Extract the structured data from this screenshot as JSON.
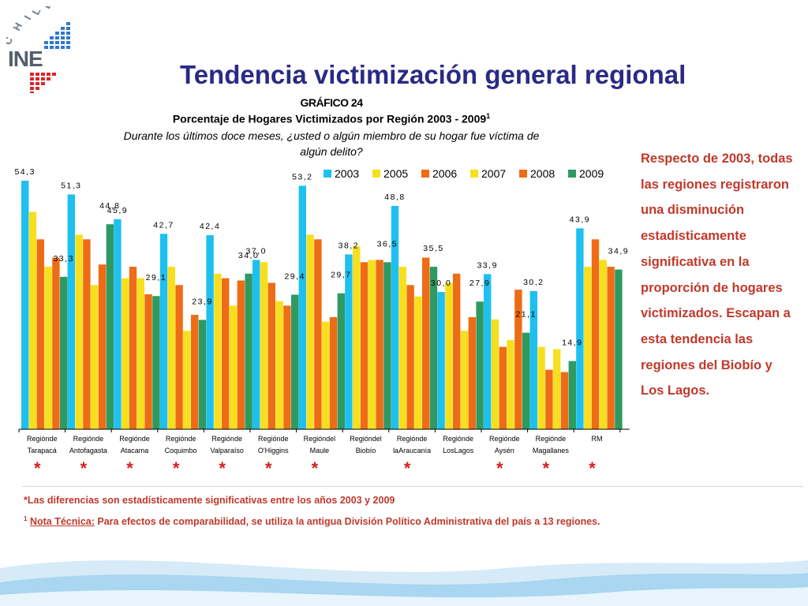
{
  "logo": {
    "country": "CHILE",
    "acronym": "INE"
  },
  "title": "Tendencia victimización general regional",
  "chart_heading": {
    "line1": "GRÁFICO 24",
    "line2": "Porcentaje de Hogares Victimizados por Región 2003 - 2009",
    "line2_sup": "1",
    "line3": "Durante los últimos doce meses, ¿usted o algún miembro de su hogar fue víctima de algún delito?"
  },
  "side_note": "Respecto de 2003, todas las regiones registraron una disminución estadísticamente significativa en la proporción de hogares victimizados. Escapan a esta tendencia las regiones del Biobío y Los Lagos.",
  "footnotes": {
    "significance": "*Las diferencias son estadísticamente significativas entre los años 2003 y 2009",
    "note_sup": "1",
    "note_label": "Nota Técnica:",
    "note_text": " Para efectos de comparabilidad, se utiliza la antigua División Político Administrativa del país a 13 regiones."
  },
  "chart_data": {
    "type": "bar",
    "categories": [
      [
        "Regiónde",
        "Tarapacá"
      ],
      [
        "Regiónde",
        "Antofagasta"
      ],
      [
        "Regiónde",
        "Atacama"
      ],
      [
        "Regiónde",
        "Coquimbo"
      ],
      [
        "Regiónde",
        "Valparaíso"
      ],
      [
        "Regiónde",
        "O'Higgins"
      ],
      [
        "Regióndel",
        "Maule"
      ],
      [
        "Regióndel",
        "Biobío"
      ],
      [
        "Regiónde",
        "laAraucanía"
      ],
      [
        "Regiónde",
        "LosLagos"
      ],
      [
        "Regiónde",
        "Aysén"
      ],
      [
        "Regiónde",
        "Magallanes"
      ],
      [
        "RM",
        ""
      ]
    ],
    "series": [
      {
        "name": "2003",
        "color": "#1ec0ef",
        "values": [
          54.3,
          51.3,
          45.9,
          42.7,
          42.4,
          37.0,
          53.2,
          38.2,
          48.8,
          30.0,
          33.9,
          30.2,
          43.9
        ]
      },
      {
        "name": "2005",
        "color": "#f7df1e",
        "values": [
          47.5,
          42.5,
          33.0,
          35.5,
          34.0,
          36.5,
          42.5,
          40.0,
          35.5,
          32.0,
          24.0,
          18.0,
          35.5
        ]
      },
      {
        "name": "2006",
        "color": "#ee6c15",
        "values": [
          41.5,
          41.5,
          35.5,
          31.5,
          33.0,
          32.0,
          41.5,
          36.5,
          31.5,
          34.0,
          18.0,
          13.0,
          41.5
        ]
      },
      {
        "name": "2007",
        "color": "#f7df1e",
        "values": [
          35.5,
          31.5,
          33.0,
          21.5,
          27.0,
          28.0,
          23.5,
          37.0,
          29.0,
          21.5,
          19.5,
          17.5,
          37.0
        ]
      },
      {
        "name": "2008",
        "color": "#ee6c15",
        "values": [
          37.5,
          36.0,
          29.5,
          25.0,
          32.5,
          27.0,
          24.5,
          37.0,
          37.5,
          24.5,
          30.5,
          12.5,
          35.5
        ]
      },
      {
        "name": "2009",
        "color": "#2e9a62",
        "values": [
          33.3,
          44.8,
          29.1,
          23.9,
          34.0,
          29.4,
          29.7,
          36.5,
          35.5,
          27.9,
          21.1,
          14.9,
          34.9
        ]
      }
    ],
    "data_labels": [
      {
        "category": 0,
        "text": "54,3"
      },
      {
        "category": 0,
        "text": "33,3"
      },
      {
        "category": 1,
        "text": "51,3"
      },
      {
        "category": 1,
        "text": "44,8"
      },
      {
        "category": 2,
        "text": "45,9"
      },
      {
        "category": 2,
        "text": "29,1"
      },
      {
        "category": 3,
        "text": "42,7"
      },
      {
        "category": 3,
        "text": "23,9"
      },
      {
        "category": 4,
        "text": "42,4"
      },
      {
        "category": 4,
        "text": "34,0"
      },
      {
        "category": 5,
        "text": "37,0"
      },
      {
        "category": 5,
        "text": "29,4"
      },
      {
        "category": 6,
        "text": "53,2"
      },
      {
        "category": 6,
        "text": "29,7"
      },
      {
        "category": 7,
        "text": "38,2"
      },
      {
        "category": 7,
        "text": "36,5"
      },
      {
        "category": 8,
        "text": "48,8"
      },
      {
        "category": 8,
        "text": "35,5"
      },
      {
        "category": 9,
        "text": "30,0"
      },
      {
        "category": 9,
        "text": "27,9"
      },
      {
        "category": 10,
        "text": "33,9"
      },
      {
        "category": 10,
        "text": "21,1"
      },
      {
        "category": 11,
        "text": "30,2"
      },
      {
        "category": 11,
        "text": "14,9"
      },
      {
        "category": 12,
        "text": "43,9"
      },
      {
        "category": 12,
        "text": "34,9"
      }
    ],
    "significant_marker": "*",
    "significant_categories": [
      0,
      1,
      2,
      3,
      4,
      5,
      6,
      8,
      10,
      11,
      12
    ],
    "legend_position": "top-right",
    "ylim": [
      0,
      60
    ],
    "grid": false
  }
}
